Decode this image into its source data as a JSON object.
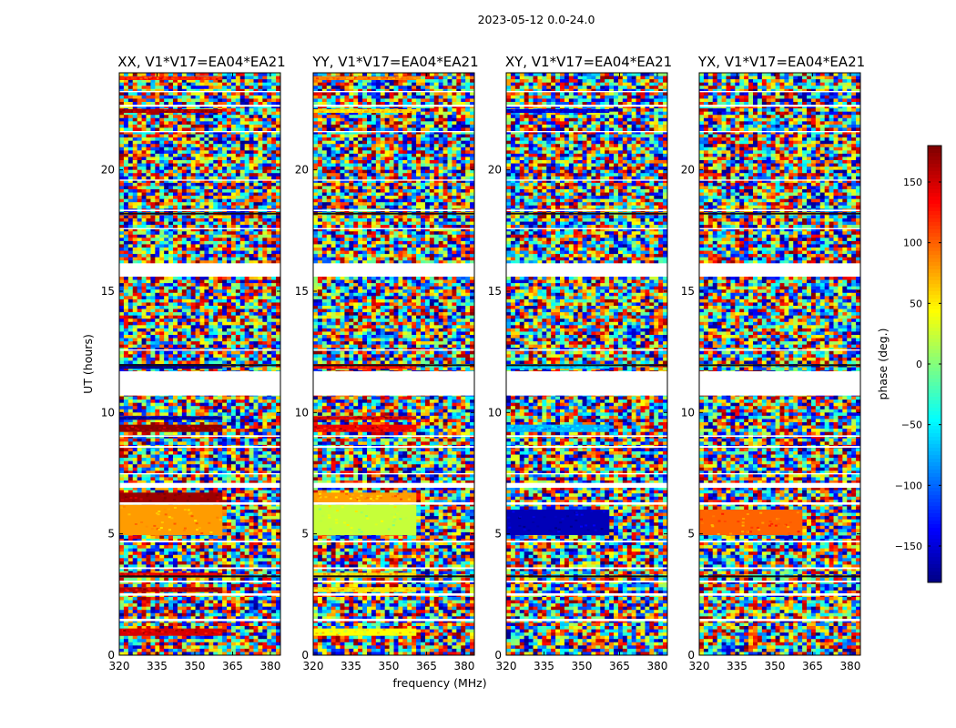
{
  "figure": {
    "suptitle": "2023-05-12 0.0-24.0"
  },
  "chart_data": {
    "type": "heatmap",
    "xlabel": "frequency (MHz)",
    "ylabel": "UT (hours)",
    "xlim": [
      320,
      384
    ],
    "ylim": [
      0,
      24
    ],
    "xticks": [
      320,
      335,
      350,
      365,
      380
    ],
    "yticks": [
      0,
      5,
      10,
      15,
      20
    ],
    "colorbar": {
      "label": "phase (deg.)",
      "range": [
        -180,
        180
      ],
      "ticks": [
        150,
        100,
        50,
        0,
        -50,
        -100,
        -150
      ],
      "tick_labels": [
        "150",
        "100",
        "50",
        "0",
        "−50",
        "−100",
        "−150"
      ],
      "colormap": "jet"
    },
    "panels": [
      {
        "title": "XX, V1*V17=EA04*EA21",
        "coherent_bands": [
          {
            "t0": 0.8,
            "t1": 1.1,
            "phase": 150
          },
          {
            "t0": 2.6,
            "t1": 2.8,
            "phase": 160
          },
          {
            "t0": 3.2,
            "t1": 3.4,
            "phase": 140
          },
          {
            "t0": 4.95,
            "t1": 6.2,
            "phase": 80
          },
          {
            "t0": 6.3,
            "t1": 6.7,
            "phase": 170
          },
          {
            "t0": 9.2,
            "t1": 9.5,
            "phase": 175
          },
          {
            "t0": 9.7,
            "t1": 9.85,
            "phase": -170
          },
          {
            "t0": 11.8,
            "t1": 12.0,
            "phase": -175
          },
          {
            "t0": 22.35,
            "t1": 22.5,
            "phase": 165
          },
          {
            "t0": 23.7,
            "t1": 23.85,
            "phase": 120
          }
        ]
      },
      {
        "title": "YY, V1*V17=EA04*EA21",
        "coherent_bands": [
          {
            "t0": 0.8,
            "t1": 1.1,
            "phase": 45
          },
          {
            "t0": 2.6,
            "t1": 2.8,
            "phase": 55
          },
          {
            "t0": 3.2,
            "t1": 3.4,
            "phase": 60
          },
          {
            "t0": 4.95,
            "t1": 6.2,
            "phase": 25
          },
          {
            "t0": 6.3,
            "t1": 6.7,
            "phase": 80
          },
          {
            "t0": 9.2,
            "t1": 9.5,
            "phase": 140
          },
          {
            "t0": 9.7,
            "t1": 9.85,
            "phase": 150
          },
          {
            "t0": 11.8,
            "t1": 12.0,
            "phase": 130
          },
          {
            "t0": 22.35,
            "t1": 22.5,
            "phase": 60
          },
          {
            "t0": 23.7,
            "t1": 23.85,
            "phase": 90
          }
        ]
      },
      {
        "title": "XY, V1*V17=EA04*EA21",
        "coherent_bands": [
          {
            "t0": 4.95,
            "t1": 6.0,
            "phase": -160
          },
          {
            "t0": 9.2,
            "t1": 9.5,
            "phase": -70
          },
          {
            "t0": 11.8,
            "t1": 12.0,
            "phase": -60
          },
          {
            "t0": 22.35,
            "t1": 22.5,
            "phase": -150
          }
        ]
      },
      {
        "title": "YX, V1*V17=EA04*EA21",
        "coherent_bands": [
          {
            "t0": 4.95,
            "t1": 6.0,
            "phase": 100
          }
        ]
      }
    ],
    "flagged_bands": [
      {
        "t0": 1.4,
        "t1": 1.5
      },
      {
        "t0": 2.45,
        "t1": 2.55
      },
      {
        "t0": 3.0,
        "t1": 3.07
      },
      {
        "t0": 3.55,
        "t1": 3.62
      },
      {
        "t0": 4.65,
        "t1": 4.72
      },
      {
        "t0": 6.2,
        "t1": 6.3
      },
      {
        "t0": 6.9,
        "t1": 7.1
      },
      {
        "t0": 7.45,
        "t1": 7.5
      },
      {
        "t0": 8.55,
        "t1": 8.62
      },
      {
        "t0": 9.0,
        "t1": 9.06
      },
      {
        "t0": 10.7,
        "t1": 11.7
      },
      {
        "t0": 12.55,
        "t1": 12.6
      },
      {
        "t0": 15.6,
        "t1": 16.15
      },
      {
        "t0": 17.55,
        "t1": 17.6
      },
      {
        "t0": 18.3,
        "t1": 18.36
      },
      {
        "t0": 19.55,
        "t1": 19.6
      },
      {
        "t0": 21.55,
        "t1": 21.6
      },
      {
        "t0": 22.6,
        "t1": 22.68
      },
      {
        "t0": 23.2,
        "t1": 23.25
      }
    ]
  }
}
